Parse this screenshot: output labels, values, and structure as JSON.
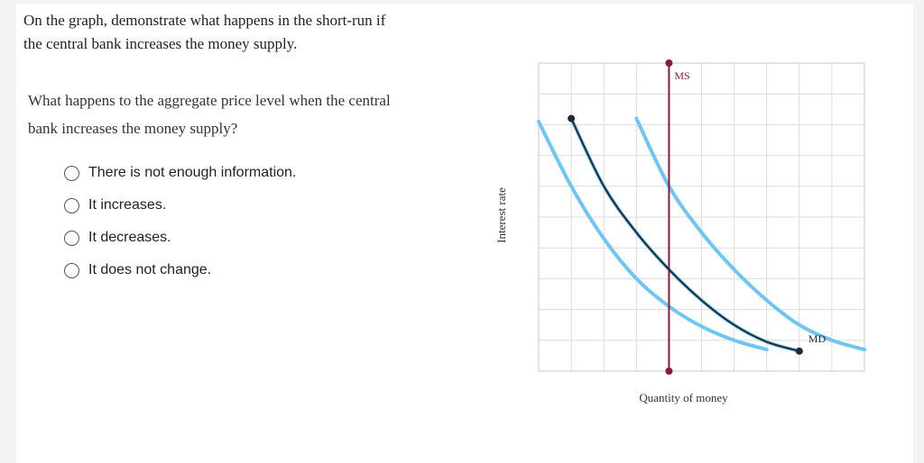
{
  "question": {
    "prompt_line1": "On the graph, demonstrate what happens in the short-run if",
    "prompt_line2": "the central bank increases the money supply.",
    "sub_line1": "What happens to the aggregate price level when the central",
    "sub_line2": "bank increases the money supply?",
    "options": [
      "There is not enough information.",
      "It increases.",
      "It decreases.",
      "It does not change."
    ]
  },
  "chart_data": {
    "type": "line",
    "xlabel": "Quantity of money",
    "ylabel": "Interest rate",
    "xlim": [
      0,
      10
    ],
    "ylim": [
      0,
      10
    ],
    "grid": true,
    "series": [
      {
        "name": "MS",
        "color": "#8b1a3a",
        "x": [
          4,
          4
        ],
        "y": [
          0,
          10
        ],
        "markers": true
      },
      {
        "name": "MD",
        "color": "#1f2a33",
        "x": [
          1,
          2,
          3,
          4,
          5,
          6,
          7,
          8
        ],
        "y": [
          8.2,
          6.0,
          4.5,
          3.3,
          2.3,
          1.5,
          0.95,
          0.65
        ],
        "markers": "endpoints"
      },
      {
        "color": "#6ec6f5",
        "x": [
          0,
          1,
          2,
          3,
          4,
          5,
          6,
          7
        ],
        "y": [
          8.1,
          6.0,
          4.3,
          3.0,
          2.1,
          1.45,
          1.0,
          0.7
        ]
      },
      {
        "color": "#6ec6f5",
        "x": [
          1,
          2,
          3,
          4,
          5,
          6,
          7,
          8
        ],
        "y": [
          8.2,
          6.0,
          4.5,
          3.3,
          2.3,
          1.5,
          0.95,
          0.65
        ]
      },
      {
        "color": "#6ec6f5",
        "x": [
          3,
          4,
          5,
          6,
          7,
          8,
          9,
          10
        ],
        "y": [
          8.2,
          6.0,
          4.5,
          3.3,
          2.3,
          1.5,
          1.0,
          0.7
        ]
      }
    ]
  }
}
